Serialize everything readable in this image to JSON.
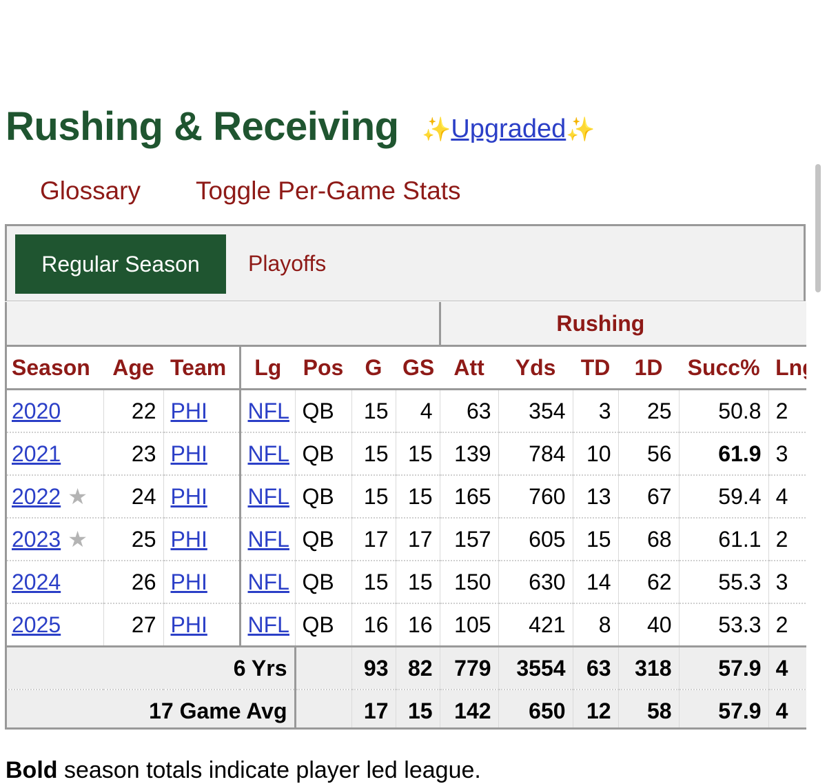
{
  "section": {
    "title": "Rushing & Receiving",
    "upgraded_label": "Upgraded",
    "sparkle": "✨"
  },
  "links": {
    "glossary": "Glossary",
    "toggle": "Toggle Per-Game Stats"
  },
  "tabs": {
    "regular": "Regular Season",
    "playoffs": "Playoffs"
  },
  "table": {
    "group_header": "Rushing",
    "columns": [
      "Season",
      "Age",
      "Team",
      "Lg",
      "Pos",
      "G",
      "GS",
      "Att",
      "Yds",
      "TD",
      "1D",
      "Succ%",
      "Lng"
    ],
    "rows": [
      {
        "season": "2020",
        "star": "",
        "age": "22",
        "team": "PHI",
        "lg": "NFL",
        "pos": "QB",
        "g": "15",
        "gs": "4",
        "att": "63",
        "yds": "354",
        "td": "3",
        "fd": "25",
        "succ": "50.8",
        "lng": "2"
      },
      {
        "season": "2021",
        "star": "",
        "age": "23",
        "team": "PHI",
        "lg": "NFL",
        "pos": "QB",
        "g": "15",
        "gs": "15",
        "att": "139",
        "yds": "784",
        "td": "10",
        "fd": "56",
        "succ": "61.9",
        "lng": "3"
      },
      {
        "season": "2022",
        "star": "★",
        "age": "24",
        "team": "PHI",
        "lg": "NFL",
        "pos": "QB",
        "g": "15",
        "gs": "15",
        "att": "165",
        "yds": "760",
        "td": "13",
        "fd": "67",
        "succ": "59.4",
        "lng": "4"
      },
      {
        "season": "2023",
        "star": "★",
        "age": "25",
        "team": "PHI",
        "lg": "NFL",
        "pos": "QB",
        "g": "17",
        "gs": "17",
        "att": "157",
        "yds": "605",
        "td": "15",
        "fd": "68",
        "succ": "61.1",
        "lng": "2"
      },
      {
        "season": "2024",
        "star": "",
        "age": "26",
        "team": "PHI",
        "lg": "NFL",
        "pos": "QB",
        "g": "15",
        "gs": "15",
        "att": "150",
        "yds": "630",
        "td": "14",
        "fd": "62",
        "succ": "55.3",
        "lng": "3"
      },
      {
        "season": "2025",
        "star": "",
        "age": "27",
        "team": "PHI",
        "lg": "NFL",
        "pos": "QB",
        "g": "16",
        "gs": "16",
        "att": "105",
        "yds": "421",
        "td": "8",
        "fd": "40",
        "succ": "53.3",
        "lng": "2"
      }
    ],
    "summary": [
      {
        "label": "6 Yrs",
        "g": "93",
        "gs": "82",
        "att": "779",
        "yds": "3554",
        "td": "63",
        "fd": "318",
        "succ": "57.9",
        "lng": "4"
      },
      {
        "label": "17 Game Avg",
        "g": "17",
        "gs": "15",
        "att": "142",
        "yds": "650",
        "td": "12",
        "fd": "58",
        "succ": "57.9",
        "lng": "4"
      }
    ]
  },
  "note": {
    "bold": "Bold",
    "rest": " season totals indicate player led league."
  }
}
